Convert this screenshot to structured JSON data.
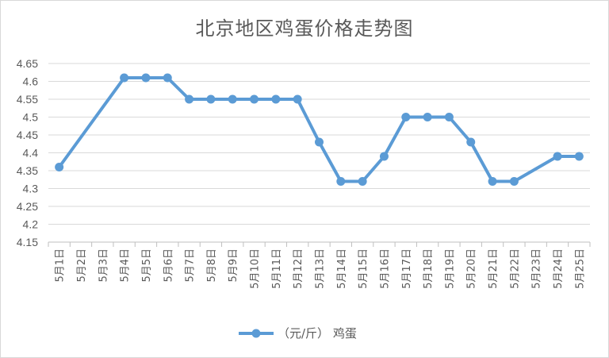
{
  "chart_data": {
    "type": "line",
    "title": "北京地区鸡蛋价格走势图",
    "xlabel": "",
    "ylabel": "",
    "ylim": [
      4.15,
      4.65
    ],
    "yticks": [
      "4.15",
      "4.2",
      "4.25",
      "4.3",
      "4.35",
      "4.4",
      "4.45",
      "4.5",
      "4.55",
      "4.6",
      "4.65"
    ],
    "categories": [
      "5月1日",
      "5月2日",
      "5月3日",
      "5月4日",
      "5月5日",
      "5月6日",
      "5月7日",
      "5月8日",
      "5月9日",
      "5月10日",
      "5月11日",
      "5月12日",
      "5月13日",
      "5月14日",
      "5月15日",
      "5月16日",
      "5月17日",
      "5月18日",
      "5月19日",
      "5月20日",
      "5月21日",
      "5月22日",
      "5月23日",
      "5月24日",
      "5月25日"
    ],
    "series": [
      {
        "name": "（元/斤） 鸡蛋",
        "color": "#5b9bd5",
        "values": [
          4.36,
          null,
          null,
          4.61,
          4.61,
          4.61,
          4.55,
          4.55,
          4.55,
          4.55,
          4.55,
          4.55,
          4.43,
          4.32,
          4.32,
          4.39,
          4.5,
          4.5,
          4.5,
          4.43,
          4.32,
          4.32,
          null,
          4.39,
          4.39
        ]
      }
    ],
    "grid": true,
    "legend_position": "bottom"
  }
}
